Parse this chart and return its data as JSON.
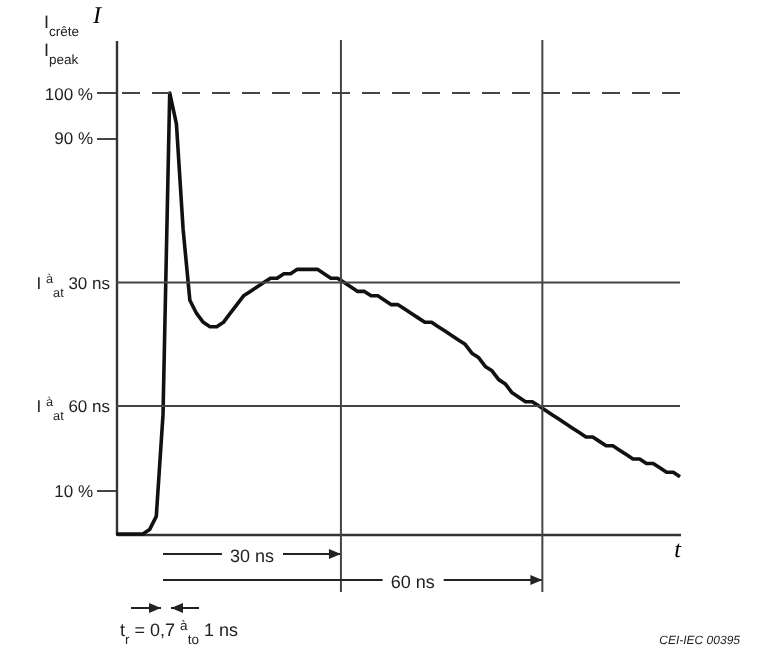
{
  "chart_data": {
    "type": "line",
    "xlabel": "t",
    "ylabel": "I",
    "categories": [
      null,
      null,
      null,
      null,
      null,
      null,
      null,
      null,
      null,
      null,
      null,
      null,
      null,
      null,
      null,
      null,
      null,
      null,
      null,
      null,
      null,
      null,
      null,
      null,
      null,
      null,
      null,
      null,
      null,
      null,
      null,
      null,
      null,
      null,
      null,
      null,
      null,
      null,
      null,
      null,
      null,
      null,
      null,
      null,
      null,
      null,
      null,
      null,
      null,
      null,
      null,
      null,
      null,
      null,
      null,
      null,
      null,
      null,
      null,
      null,
      null,
      null,
      null,
      null,
      null,
      null,
      null,
      null,
      null,
      null,
      null,
      null,
      null,
      null,
      null,
      null,
      null,
      null,
      null,
      null,
      null,
      null,
      null,
      null,
      null
    ],
    "series": [
      {
        "color": "#111111",
        "values": [
          0,
          0,
          0,
          0,
          0,
          1,
          4,
          27,
          100,
          93,
          69,
          53,
          50,
          48,
          47,
          47,
          48,
          50,
          52,
          54,
          55,
          56,
          57,
          58,
          58,
          59,
          59,
          60,
          60,
          60,
          60,
          59,
          58,
          58,
          57,
          56,
          55,
          55,
          54,
          54,
          53,
          52,
          52,
          51,
          50,
          49,
          48,
          48,
          47,
          46,
          45,
          44,
          43,
          41,
          40,
          38,
          37,
          35,
          34,
          32,
          31,
          30,
          30,
          29,
          28,
          27,
          26,
          25,
          24,
          23,
          22,
          22,
          21,
          20,
          20,
          19,
          18,
          17,
          17,
          16,
          16,
          15,
          14,
          14,
          13
        ]
      }
    ],
    "ylim": [
      0,
      112
    ],
    "yticks": [
      {
        "value": 10,
        "label": "10 %"
      },
      {
        "value": 90,
        "label": "90 %"
      },
      {
        "value": 100,
        "label": "100 %"
      }
    ],
    "tick_labels": "y",
    "grid": false,
    "line_style": "solid",
    "ref_lines": [
      {
        "axis": "y",
        "value": 100,
        "line_style": "dashed",
        "color": "#444444"
      },
      {
        "axis": "y",
        "value": 57,
        "label": "I $^{à}$$_{at}$ 30 ns",
        "color": "#444444"
      },
      {
        "axis": "y",
        "value": 29,
        "label": "I $^{à}$$_{at}$ 60 ns",
        "color": "#444444"
      }
    ],
    "annotations": [
      "I$_{crête}$",
      "I$_{peak}$",
      "30 ns",
      "60 ns",
      "t$_{r}$ = 0,7 $^{à}$$_{to}$ 1 ns",
      "CEI-IEC 00395"
    ]
  }
}
